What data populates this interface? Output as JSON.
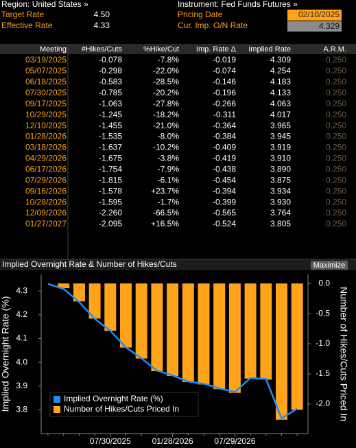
{
  "header": {
    "region": "Region: United States »",
    "instrument": "Instrument: Fed Funds Futures »",
    "target_rate_label": "Target Rate",
    "target_rate": "4.50",
    "effective_rate_label": "Effective Rate",
    "effective_rate": "4.33",
    "pricing_date_label": "Pricing Date",
    "pricing_date": "02/10/2025",
    "imp_rate_label": "Cur. Imp. O/N Rate",
    "imp_rate": "4.329"
  },
  "table": {
    "header": [
      "Meeting",
      "#Hikes/Cuts",
      "%Hike/Cut",
      "Imp. Rate Δ",
      "Implied Rate",
      "A.R.M."
    ],
    "rows": [
      [
        "03/19/2025",
        "-0.078",
        "-7.8%",
        "-0.019",
        "4.309",
        "0.250"
      ],
      [
        "05/07/2025",
        "-0.298",
        "-22.0%",
        "-0.074",
        "4.254",
        "0.250"
      ],
      [
        "06/18/2025",
        "-0.583",
        "-28.5%",
        "-0.146",
        "4.183",
        "0.250"
      ],
      [
        "07/30/2025",
        "-0.785",
        "-20.2%",
        "-0.196",
        "4.133",
        "0.250"
      ],
      [
        "09/17/2025",
        "-1.063",
        "-27.8%",
        "-0.266",
        "4.063",
        "0.250"
      ],
      [
        "10/29/2025",
        "-1.245",
        "-18.2%",
        "-0.311",
        "4.017",
        "0.250"
      ],
      [
        "12/10/2025",
        "-1.455",
        "-21.0%",
        "-0.364",
        "3.965",
        "0.250"
      ],
      [
        "01/28/2026",
        "-1.535",
        "-8.0%",
        "-0.384",
        "3.945",
        "0.250"
      ],
      [
        "03/18/2026",
        "-1.637",
        "-10.2%",
        "-0.409",
        "3.919",
        "0.250"
      ],
      [
        "04/29/2026",
        "-1.675",
        "-3.8%",
        "-0.419",
        "3.910",
        "0.250"
      ],
      [
        "06/17/2026",
        "-1.754",
        "-7.9%",
        "-0.438",
        "3.890",
        "0.250"
      ],
      [
        "07/29/2026",
        "-1.815",
        "-6.1%",
        "-0.454",
        "3.875",
        "0.250"
      ],
      [
        "09/16/2026",
        "-1.578",
        "+23.7%",
        "-0.394",
        "3.934",
        "0.250"
      ],
      [
        "10/28/2026",
        "-1.595",
        "-1.7%",
        "-0.399",
        "3.930",
        "0.250"
      ],
      [
        "12/09/2026",
        "-2.260",
        "-66.5%",
        "-0.565",
        "3.764",
        "0.250"
      ],
      [
        "01/27/2027",
        "-2.095",
        "+16.5%",
        "-0.524",
        "3.805",
        "0.250"
      ]
    ]
  },
  "chart_data": {
    "type": "bar-line",
    "title": "Implied Overnight Rate & Number of Hikes/Cuts",
    "button": "Maximize",
    "y_label": "Implied Overnight Rate (%)",
    "y2_label": "Number of Hikes/Cuts Priced In",
    "categories": [
      null,
      null,
      null,
      null,
      "07/30/2025",
      null,
      null,
      null,
      "01/28/2026",
      null,
      null,
      null,
      "07/29/2026",
      null,
      null,
      null,
      null
    ],
    "series": [
      {
        "name": "Implied Overnight Rate (%)",
        "type": "line",
        "color": "#1f8ef1",
        "values": [
          4.33,
          4.309,
          4.254,
          4.183,
          4.133,
          4.063,
          4.017,
          3.965,
          3.945,
          3.919,
          3.91,
          3.89,
          3.875,
          3.934,
          3.93,
          3.764,
          3.805
        ]
      },
      {
        "name": "Number of Hikes/Cuts Priced In",
        "type": "bar",
        "axis": "y2",
        "color": "#ffa31a",
        "values": [
          null,
          -0.078,
          -0.298,
          -0.583,
          -0.785,
          -1.063,
          -1.245,
          -1.455,
          -1.535,
          -1.637,
          -1.675,
          -1.754,
          -1.815,
          -1.578,
          -1.595,
          -2.26,
          -2.095
        ]
      }
    ],
    "ylim": [
      3.7,
      4.37
    ],
    "yticks": [
      3.8,
      3.9,
      {
        "value": 4,
        "label": "4.0"
      },
      4.1,
      4.2,
      4.3
    ],
    "y2lim": [
      -2.49,
      0.15
    ],
    "y2ticks": [
      {
        "value": 0,
        "label": "0.0"
      },
      -0.5,
      {
        "value": -1,
        "label": "-1.0"
      },
      -1.5,
      {
        "value": -2,
        "label": "-2.0"
      }
    ],
    "legend": "bottom-left"
  }
}
